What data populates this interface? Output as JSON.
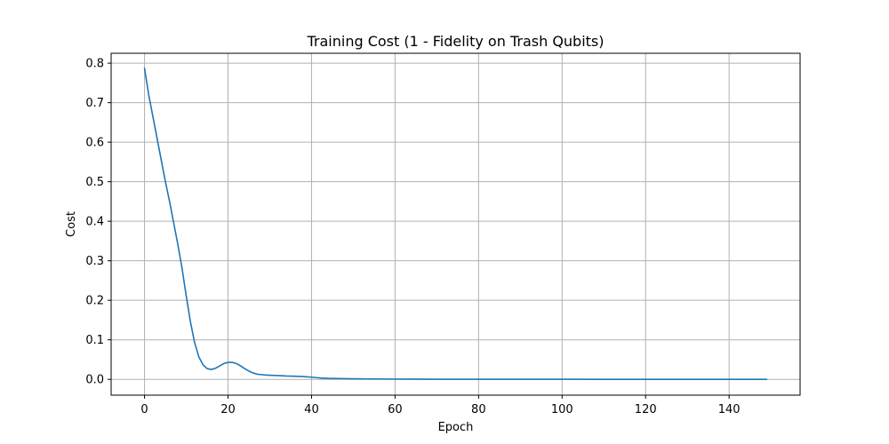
{
  "chart_data": {
    "type": "line",
    "title": "Training Cost (1 - Fidelity on Trash Qubits)",
    "xlabel": "Epoch",
    "ylabel": "Cost",
    "xlim": [
      -8,
      157
    ],
    "ylim": [
      -0.04,
      0.825
    ],
    "xticks": [
      0,
      20,
      40,
      60,
      80,
      100,
      120,
      140
    ],
    "yticks": [
      0.0,
      0.1,
      0.2,
      0.3,
      0.4,
      0.5,
      0.6,
      0.7,
      0.8
    ],
    "xtick_labels": [
      "0",
      "20",
      "40",
      "60",
      "80",
      "100",
      "120",
      "140"
    ],
    "ytick_labels": [
      "0.0",
      "0.1",
      "0.2",
      "0.3",
      "0.4",
      "0.5",
      "0.6",
      "0.7",
      "0.8"
    ],
    "grid": true,
    "legend": null,
    "series": [
      {
        "color": "#1f77b4",
        "x": [
          0,
          1,
          2,
          3,
          4,
          5,
          6,
          7,
          8,
          9,
          10,
          11,
          12,
          13,
          14,
          15,
          16,
          17,
          18,
          19,
          20,
          21,
          22,
          23,
          24,
          25,
          26,
          27,
          28,
          29,
          30,
          32,
          34,
          36,
          38,
          40,
          42,
          44,
          46,
          48,
          50,
          55,
          60,
          65,
          70,
          80,
          90,
          100,
          110,
          120,
          130,
          140,
          149
        ],
        "y": [
          0.787,
          0.72,
          0.665,
          0.61,
          0.555,
          0.5,
          0.45,
          0.395,
          0.34,
          0.28,
          0.21,
          0.145,
          0.093,
          0.057,
          0.037,
          0.027,
          0.025,
          0.028,
          0.034,
          0.04,
          0.043,
          0.043,
          0.04,
          0.034,
          0.027,
          0.021,
          0.016,
          0.013,
          0.012,
          0.011,
          0.0105,
          0.0095,
          0.0085,
          0.008,
          0.007,
          0.0055,
          0.0035,
          0.0025,
          0.002,
          0.0018,
          0.0015,
          0.001,
          0.0007,
          0.0005,
          0.0004,
          0.0003,
          0.0002,
          0.0002,
          0.0001,
          0.0001,
          0.0001,
          0.0001,
          0.0001
        ]
      }
    ]
  }
}
